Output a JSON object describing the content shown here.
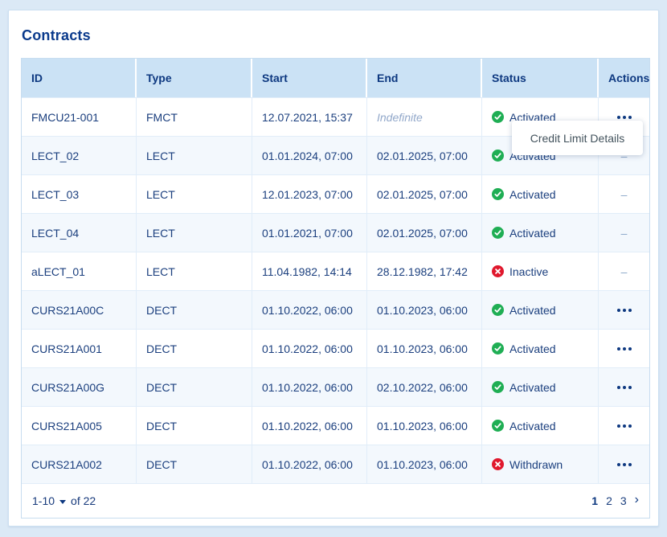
{
  "page": {
    "title": "Contracts"
  },
  "table": {
    "columns": [
      "ID",
      "Type",
      "Start",
      "End",
      "Status",
      "Actions"
    ],
    "no_actions_placeholder": "–",
    "rows": [
      {
        "id": "FMCU21-001",
        "type": "FMCT",
        "start": "12.07.2021, 15:37",
        "end": "Indefinite",
        "end_style": "indefinite",
        "status": {
          "label": "Activated",
          "kind": "ok"
        },
        "actions": "menu"
      },
      {
        "id": "LECT_02",
        "type": "LECT",
        "start": "01.01.2024, 07:00",
        "end": "02.01.2025, 07:00",
        "end_style": "normal",
        "status": {
          "label": "Activated",
          "kind": "ok"
        },
        "actions": "none"
      },
      {
        "id": "LECT_03",
        "type": "LECT",
        "start": "12.01.2023, 07:00",
        "end": "02.01.2025, 07:00",
        "end_style": "normal",
        "status": {
          "label": "Activated",
          "kind": "ok"
        },
        "actions": "none"
      },
      {
        "id": "LECT_04",
        "type": "LECT",
        "start": "01.01.2021, 07:00",
        "end": "02.01.2025, 07:00",
        "end_style": "normal",
        "status": {
          "label": "Activated",
          "kind": "ok"
        },
        "actions": "none"
      },
      {
        "id": "aLECT_01",
        "type": "LECT",
        "start": "11.04.1982, 14:14",
        "end": "28.12.1982, 17:42",
        "end_style": "normal",
        "status": {
          "label": "Inactive",
          "kind": "error"
        },
        "actions": "none"
      },
      {
        "id": "CURS21A00C",
        "type": "DECT",
        "start": "01.10.2022, 06:00",
        "end": "01.10.2023, 06:00",
        "end_style": "normal",
        "status": {
          "label": "Activated",
          "kind": "ok"
        },
        "actions": "menu"
      },
      {
        "id": "CURS21A001",
        "type": "DECT",
        "start": "01.10.2022, 06:00",
        "end": "01.10.2023, 06:00",
        "end_style": "normal",
        "status": {
          "label": "Activated",
          "kind": "ok"
        },
        "actions": "menu"
      },
      {
        "id": "CURS21A00G",
        "type": "DECT",
        "start": "01.10.2022, 06:00",
        "end": "02.10.2022, 06:00",
        "end_style": "normal",
        "status": {
          "label": "Activated",
          "kind": "ok"
        },
        "actions": "menu"
      },
      {
        "id": "CURS21A005",
        "type": "DECT",
        "start": "01.10.2022, 06:00",
        "end": "01.10.2023, 06:00",
        "end_style": "normal",
        "status": {
          "label": "Activated",
          "kind": "ok"
        },
        "actions": "menu"
      },
      {
        "id": "CURS21A002",
        "type": "DECT",
        "start": "01.10.2022, 06:00",
        "end": "01.10.2023, 06:00",
        "end_style": "normal",
        "status": {
          "label": "Withdrawn",
          "kind": "error"
        },
        "actions": "menu"
      }
    ]
  },
  "actions_menu": {
    "items": [
      "Credit Limit Details"
    ]
  },
  "footer": {
    "range": "1-10",
    "total": "of 22",
    "pages": [
      "1",
      "2",
      "3"
    ],
    "current_page": "1",
    "next_icon": "›"
  },
  "colors": {
    "status_ok": "#1fae54",
    "status_error": "#e0182d",
    "accent": "#0d3880"
  }
}
